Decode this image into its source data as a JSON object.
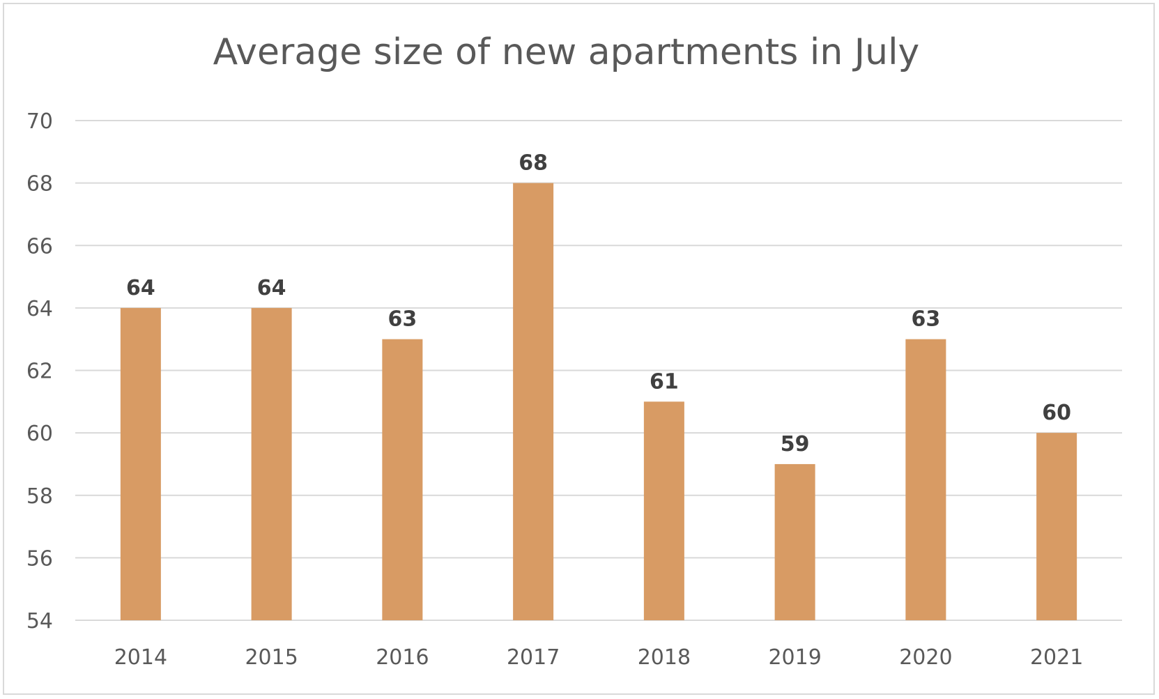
{
  "chart_data": {
    "type": "bar",
    "title": "Average size of new apartments in July",
    "xlabel": "",
    "ylabel": "",
    "categories": [
      "2014",
      "2015",
      "2016",
      "2017",
      "2018",
      "2019",
      "2020",
      "2021"
    ],
    "values": [
      64,
      64,
      63,
      68,
      61,
      59,
      63,
      60
    ],
    "ylim": [
      54,
      70
    ],
    "yticks": [
      54,
      56,
      58,
      60,
      62,
      64,
      66,
      68,
      70
    ],
    "grid": true,
    "legend": "none",
    "data_labels": true,
    "bar_color": "#d89b64",
    "grid_color": "#d9d9d9",
    "text_color": "#595959"
  }
}
